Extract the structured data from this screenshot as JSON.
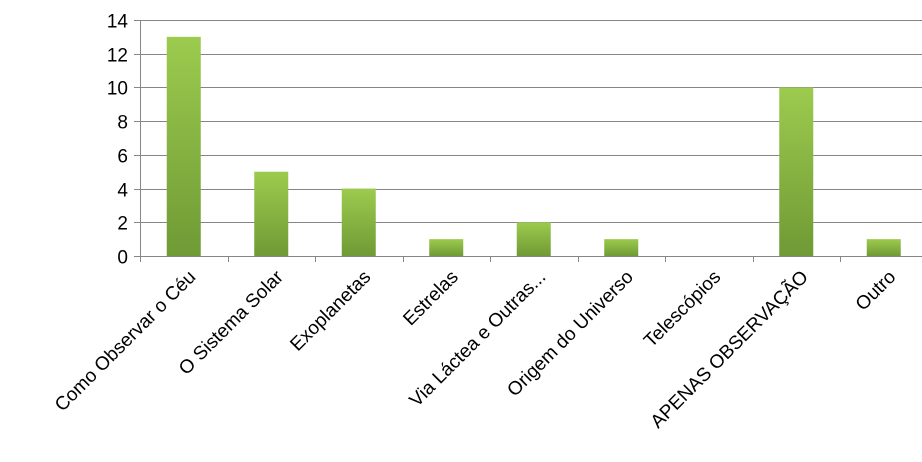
{
  "chart_data": {
    "type": "bar",
    "title": "",
    "xlabel": "",
    "ylabel": "",
    "categories": [
      "Como Observar o Céu",
      "O Sistema Solar",
      "Exoplanetas",
      "Estrelas",
      "Via Láctea e Outras...",
      "Origem do Universo",
      "Telescópios",
      "APENAS OBSERVAÇÃO",
      "Outro"
    ],
    "values": [
      13,
      5,
      4,
      1,
      2,
      1,
      0,
      10,
      1
    ],
    "ylim": [
      0,
      14
    ],
    "yticks": [
      0,
      2,
      4,
      6,
      8,
      10,
      12,
      14
    ],
    "grid": true,
    "legend": "none",
    "colors": {
      "bar_top": "#9ccb4e",
      "bar_bottom": "#6f9a35",
      "grid": "#868686",
      "axis": "#868686"
    }
  }
}
